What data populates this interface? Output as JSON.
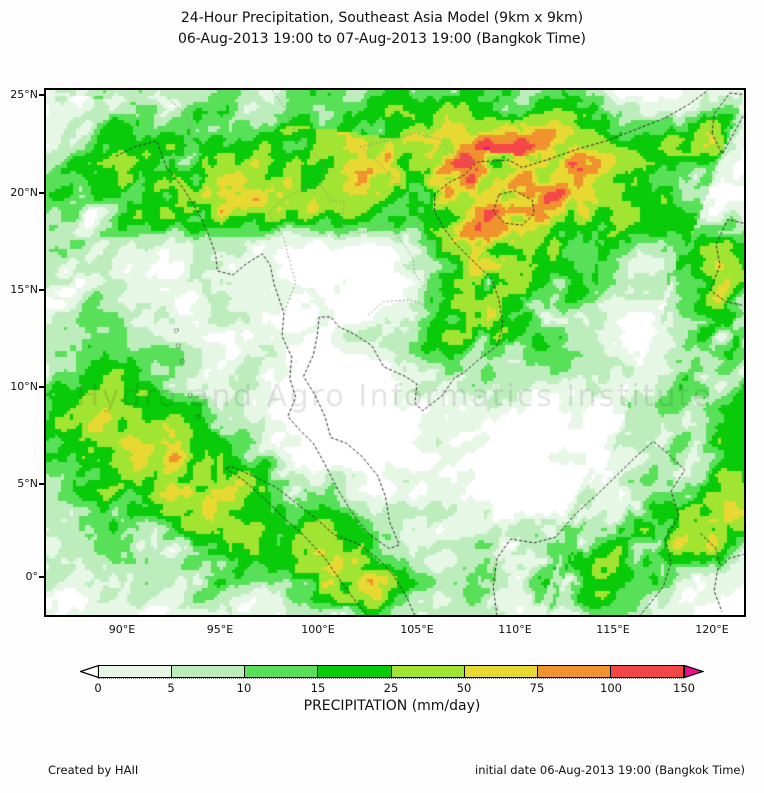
{
  "title": {
    "line1": "24-Hour Precipitation, Southeast Asia Model (9km x 9km)",
    "line2": "06-Aug-2013 19:00 to 07-Aug-2013 19:00 (Bangkok Time)"
  },
  "map": {
    "watermark": "Hydro and Agro Informatics Institute",
    "lat_labels": [
      "25°N",
      "20°N",
      "15°N",
      "10°N",
      "5°N",
      "0°"
    ],
    "lon_labels": [
      "90°E",
      "95°E",
      "100°E",
      "105°E",
      "110°E",
      "115°E",
      "120°E"
    ]
  },
  "legend": {
    "title": "PRECIPITATION (mm/day)",
    "tick_labels": [
      "0",
      "5",
      "10",
      "15",
      "25",
      "50",
      "75",
      "100",
      "150"
    ],
    "segment_colors": [
      "#e6f7e6",
      "#bdedbd",
      "#58e058",
      "#09cb09",
      "#a2e432",
      "#e8d832",
      "#f0922e",
      "#f44848"
    ],
    "under_color": "#ffffff",
    "over_color": "#ee0d8e"
  },
  "footer": {
    "left": "Created by HAII",
    "right": "initial date 06-Aug-2013 19:00 (Bangkok Time)"
  },
  "chart_data": {
    "type": "heatmap",
    "title": "24-Hour Precipitation, Southeast Asia Model (9km x 9km)",
    "subtitle": "06-Aug-2013 19:00 to 07-Aug-2013 19:00 (Bangkok Time)",
    "colorbar_label": "PRECIPITATION (mm/day)",
    "colorbar_levels": [
      0,
      5,
      10,
      15,
      25,
      50,
      75,
      100,
      150
    ],
    "colorbar_colors": [
      "#e6f7e6",
      "#bdedbd",
      "#58e058",
      "#09cb09",
      "#a2e432",
      "#e8d832",
      "#f0922e",
      "#f44848",
      "#ee0d8e"
    ],
    "x_ticks": [
      "90°E",
      "95°E",
      "100°E",
      "105°E",
      "110°E",
      "115°E",
      "120°E"
    ],
    "y_ticks": [
      "25°N",
      "20°N",
      "15°N",
      "10°N",
      "5°N",
      "0°"
    ],
    "xlim_deg_east": [
      86.0,
      121.7
    ],
    "ylim_deg_north": [
      -2.1,
      25.4
    ],
    "legend_position": "bottom"
  }
}
